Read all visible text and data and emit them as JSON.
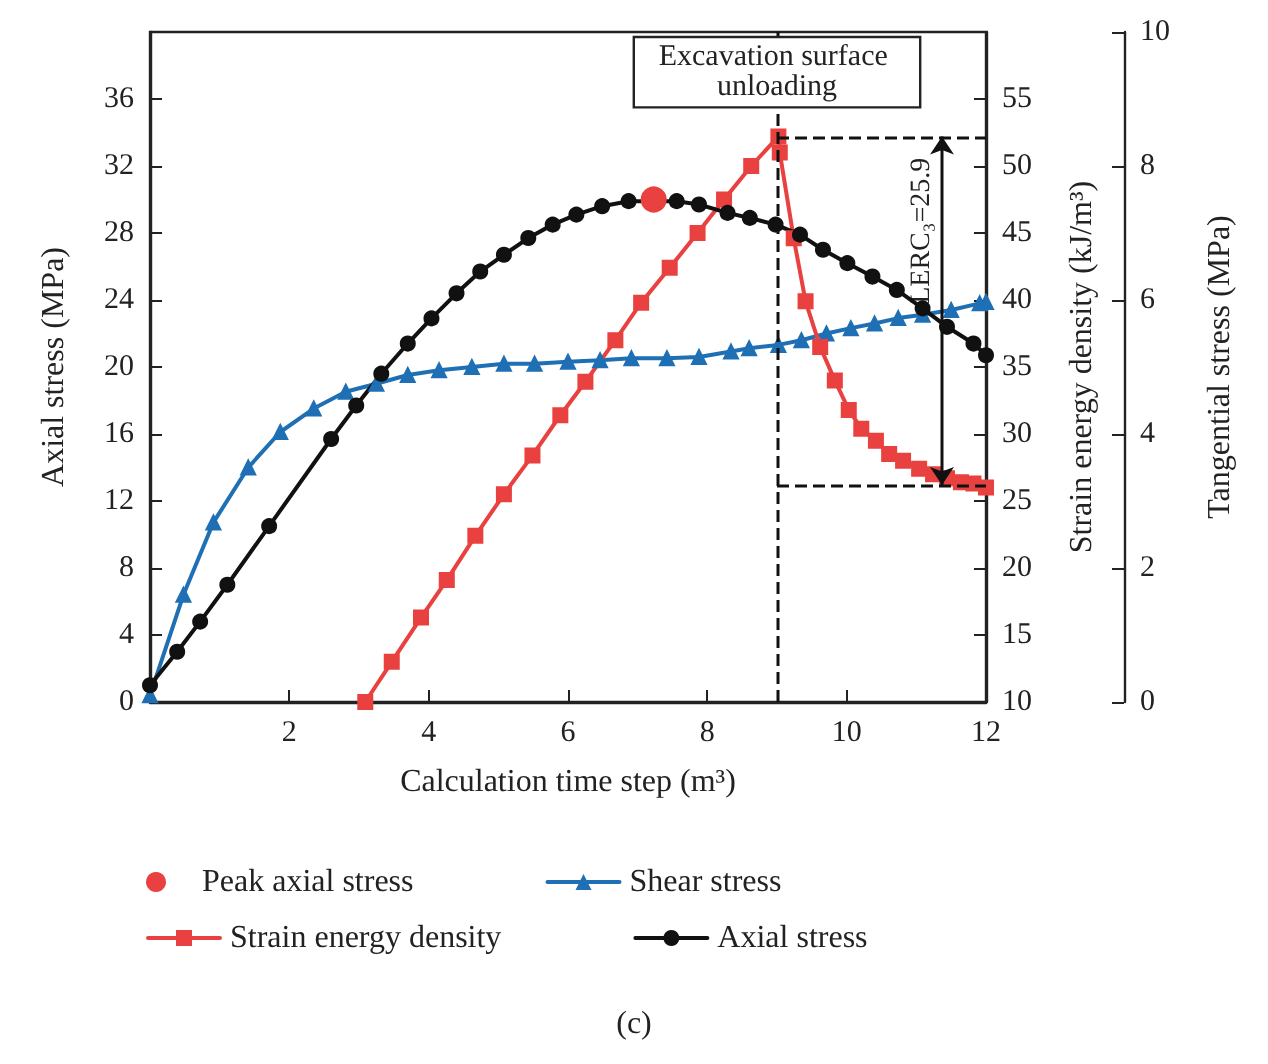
{
  "chart_data": {
    "type": "line",
    "xlabel": "Calculation time step (m³)",
    "ylabel": "Axial stress (MPa)",
    "y2label": "Strain energy density (kJ/m³)",
    "y3label": "Tangential stress (MPa)",
    "xlim": [
      0,
      12
    ],
    "xticks": [
      2,
      4,
      6,
      8,
      10,
      12
    ],
    "ylim": [
      0,
      40
    ],
    "yticks": [
      0,
      4,
      8,
      12,
      16,
      20,
      24,
      28,
      32,
      36
    ],
    "y2lim": [
      10,
      60
    ],
    "y2ticks": [
      10,
      15,
      20,
      25,
      30,
      35,
      40,
      45,
      50,
      55
    ],
    "y3lim": [
      0,
      10
    ],
    "y3ticks": [
      0,
      2,
      4,
      6,
      8,
      10
    ],
    "grid": false,
    "legend": "bottom",
    "line_style": "solid",
    "series": [
      {
        "name": "Peak axial stress",
        "type": "scatter",
        "marker": "circle",
        "color": "#e8413f",
        "x": [
          7.23
        ],
        "values": [
          30.0
        ]
      },
      {
        "name": "Shear stress",
        "marker": "triangle",
        "color": "#1f6fb5",
        "axis": "y3",
        "x": [
          0,
          0.48,
          0.91,
          1.41,
          1.87,
          2.35,
          2.81,
          3.25,
          3.7,
          4.15,
          4.62,
          5.08,
          5.52,
          6.0,
          6.46,
          6.91,
          7.42,
          7.88,
          8.34,
          8.6,
          9.02,
          9.35,
          9.71,
          10.06,
          10.4,
          10.74,
          11.09,
          11.5,
          11.91,
          12
        ],
        "values": [
          0.1,
          1.6,
          2.68,
          3.5,
          4.03,
          4.38,
          4.63,
          4.75,
          4.88,
          4.95,
          5.0,
          5.05,
          5.05,
          5.08,
          5.1,
          5.13,
          5.13,
          5.15,
          5.23,
          5.28,
          5.33,
          5.4,
          5.5,
          5.58,
          5.65,
          5.73,
          5.78,
          5.85,
          5.95,
          5.97
        ]
      },
      {
        "name": "Strain energy density",
        "marker": "square",
        "color": "#e8413f",
        "axis": "y2",
        "x": [
          3.09,
          3.47,
          3.89,
          4.26,
          4.67,
          5.08,
          5.49,
          5.89,
          6.25,
          6.68,
          7.05,
          7.46,
          7.86,
          8.24,
          8.63,
          9.02,
          9.04,
          9.24,
          9.41,
          9.62,
          9.83,
          10.03,
          10.21,
          10.42,
          10.61,
          10.81,
          11.04,
          11.24,
          11.44,
          11.64,
          11.82,
          12
        ],
        "values": [
          10,
          13.0,
          16.3,
          19.1,
          22.4,
          25.5,
          28.4,
          31.4,
          33.9,
          37.0,
          39.8,
          42.4,
          45.0,
          47.5,
          50.0,
          52.2,
          51.0,
          44.6,
          39.9,
          36.5,
          34.0,
          31.8,
          30.4,
          29.5,
          28.5,
          28.0,
          27.4,
          27.0,
          26.7,
          26.4,
          26.3,
          26.0
        ]
      },
      {
        "name": "Axial stress",
        "marker": "circle",
        "color": "#111111",
        "x": [
          0,
          0.39,
          0.72,
          1.11,
          1.71,
          2.6,
          2.96,
          3.32,
          3.7,
          4.04,
          4.4,
          4.74,
          5.08,
          5.43,
          5.78,
          6.12,
          6.49,
          6.87,
          7.56,
          7.88,
          8.29,
          8.61,
          8.98,
          9.33,
          9.66,
          10.01,
          10.37,
          10.72,
          11.09,
          11.44,
          11.82,
          12
        ],
        "values": [
          1.0,
          3.0,
          4.8,
          7.0,
          10.5,
          15.7,
          17.7,
          19.6,
          21.4,
          22.9,
          24.4,
          25.7,
          26.7,
          27.7,
          28.5,
          29.1,
          29.6,
          29.9,
          29.9,
          29.7,
          29.2,
          28.9,
          28.5,
          27.9,
          27.0,
          26.2,
          25.4,
          24.6,
          23.5,
          22.4,
          21.4,
          20.7
        ]
      }
    ],
    "ref_lines": [
      {
        "axis": "x",
        "value": 9,
        "line_style": "dashed",
        "color": "#111111"
      },
      {
        "axis": "y2",
        "value": 52.2,
        "line_style": "dashed",
        "color": "#111111"
      },
      {
        "axis": "y2",
        "value": 26.2,
        "line_style": "dashed",
        "color": "#111111"
      }
    ],
    "annotations": [
      {
        "text": "Excavation surface unloading",
        "x": 9,
        "y": 37.6
      },
      "LERC₃=25.9",
      "(c)"
    ]
  }
}
